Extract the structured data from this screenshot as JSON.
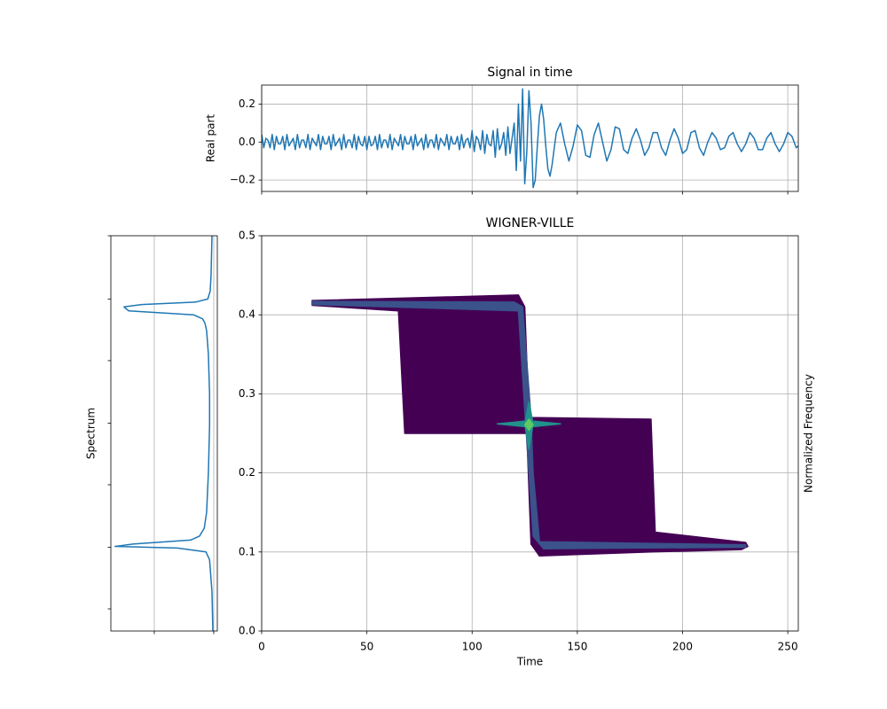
{
  "chart_data": [
    {
      "type": "line",
      "title": "Signal in time",
      "ylabel": "Real part",
      "color": "#1f77b4",
      "grid": true,
      "xlim": [
        0,
        255
      ],
      "xticks": [
        0,
        50,
        100,
        150,
        200,
        250
      ],
      "show_xticklabels": false,
      "ylim": [
        -0.26,
        0.3
      ],
      "yticks": [
        {
          "value": -0.2,
          "label": "−0.2"
        },
        {
          "value": 0,
          "label": "0.0"
        },
        0.2
      ],
      "x": [
        0,
        1,
        2,
        3,
        4,
        5,
        6,
        7,
        8,
        9,
        10,
        11,
        12,
        13,
        14,
        15,
        16,
        17,
        18,
        19,
        20,
        21,
        22,
        23,
        24,
        25,
        26,
        27,
        28,
        29,
        30,
        31,
        32,
        33,
        34,
        35,
        36,
        37,
        38,
        39,
        40,
        41,
        42,
        43,
        44,
        45,
        46,
        47,
        48,
        49,
        50,
        51,
        52,
        53,
        54,
        55,
        56,
        57,
        58,
        59,
        60,
        61,
        62,
        63,
        64,
        65,
        66,
        67,
        68,
        69,
        70,
        71,
        72,
        73,
        74,
        75,
        76,
        77,
        78,
        79,
        80,
        81,
        82,
        83,
        84,
        85,
        86,
        87,
        88,
        89,
        90,
        91,
        92,
        93,
        94,
        95,
        96,
        97,
        98,
        99,
        100,
        101,
        102,
        103,
        104,
        105,
        106,
        107,
        108,
        109,
        110,
        111,
        112,
        113,
        114,
        115,
        116,
        117,
        118,
        119,
        120,
        121,
        122,
        123,
        124,
        125,
        126,
        127,
        128,
        129,
        130,
        131,
        132,
        133,
        134,
        135,
        136,
        137,
        138,
        140,
        142,
        144,
        146,
        148,
        150,
        152,
        154,
        156,
        158,
        160,
        162,
        164,
        166,
        168,
        170,
        172,
        174,
        176,
        178,
        180,
        182,
        184,
        186,
        188,
        190,
        192,
        194,
        196,
        198,
        200,
        202,
        204,
        206,
        208,
        210,
        212,
        214,
        216,
        218,
        220,
        222,
        224,
        226,
        228,
        230,
        232,
        234,
        236,
        238,
        240,
        242,
        244,
        246,
        248,
        250,
        252,
        254,
        255
      ],
      "values": [
        0.04,
        -0.03,
        0.02,
        0.01,
        -0.03,
        0.04,
        -0.04,
        0.03,
        -0.01,
        -0.01,
        0.03,
        -0.04,
        0.04,
        -0.02,
        0,
        0.02,
        -0.04,
        0.04,
        -0.03,
        0.01,
        0.01,
        -0.03,
        0.04,
        -0.04,
        0.02,
        0,
        -0.02,
        0.04,
        -0.04,
        0.03,
        -0.01,
        -0.01,
        0.03,
        -0.04,
        0.04,
        -0.02,
        0,
        0.02,
        -0.04,
        0.04,
        -0.03,
        0.01,
        0.01,
        -0.03,
        0.04,
        -0.04,
        0.03,
        -0.01,
        -0.02,
        0.03,
        -0.04,
        0.03,
        -0.02,
        -0.01,
        0.03,
        -0.04,
        0.04,
        -0.03,
        0.01,
        0.01,
        -0.03,
        0.04,
        -0.04,
        0.02,
        0,
        -0.02,
        0.04,
        -0.04,
        0.03,
        -0.01,
        -0.01,
        0.03,
        -0.04,
        0.04,
        -0.02,
        0,
        0.02,
        -0.04,
        0.04,
        -0.03,
        0.01,
        0.01,
        -0.03,
        0.04,
        -0.04,
        0.02,
        0,
        -0.02,
        0.04,
        -0.04,
        0.03,
        -0.01,
        -0.01,
        0.03,
        -0.04,
        0.04,
        -0.03,
        0.01,
        0.02,
        -0.03,
        0.06,
        -0.05,
        0.03,
        0.01,
        -0.04,
        0.06,
        -0.06,
        0.04,
        -0.01,
        -0.02,
        0.06,
        -0.08,
        0.07,
        -0.04,
        -0.01,
        0.05,
        -0.07,
        0.08,
        -0.06,
        0.02,
        0.1,
        -0.15,
        0.2,
        -0.1,
        0.28,
        -0.22,
        -0.05,
        0.27,
        0.1,
        -0.24,
        -0.2,
        -0.02,
        0.14,
        0.2,
        0.12,
        -0.02,
        -0.14,
        -0.18,
        -0.12,
        0.05,
        0.1,
        -0.01,
        -0.1,
        -0.02,
        0.09,
        0.06,
        -0.07,
        -0.08,
        0.04,
        0.1,
        0,
        -0.1,
        -0.04,
        0.08,
        0.07,
        -0.04,
        -0.06,
        0.02,
        0.07,
        0.01,
        -0.07,
        -0.03,
        0.05,
        0.05,
        -0.03,
        -0.07,
        0.01,
        0.07,
        0.02,
        -0.06,
        -0.04,
        0.05,
        0.06,
        -0.03,
        -0.07,
        0,
        0.05,
        0.02,
        -0.04,
        -0.03,
        0.03,
        0.05,
        -0.01,
        -0.05,
        -0.01,
        0.05,
        0.02,
        -0.04,
        -0.04,
        0.02,
        0.05,
        -0.01,
        -0.05,
        -0.01,
        0.05,
        0.03,
        -0.03,
        -0.02
      ]
    },
    {
      "type": "line",
      "orientation": "horizontal",
      "ylabel": "Spectrum",
      "color": "#1f77b4",
      "grid": "x",
      "xlim": [
        1.73,
        -0.06
      ],
      "xticks": [
        1,
        0
      ],
      "show_xticklabels": false,
      "ylim": [
        0,
        0.5
      ],
      "yticks": [
        0.028,
        0.106,
        0.185,
        0.263,
        0.342,
        0.42,
        0.5
      ],
      "show_yticklabels": false,
      "y": [
        0,
        0.05,
        0.09,
        0.1,
        0.105,
        0.107,
        0.11,
        0.115,
        0.12,
        0.13,
        0.15,
        0.2,
        0.26,
        0.3,
        0.35,
        0.38,
        0.39,
        0.395,
        0.4,
        0.405,
        0.41,
        0.413,
        0.416,
        0.42,
        0.43,
        0.45,
        0.5
      ],
      "values": [
        0.015,
        0.03,
        0.07,
        0.13,
        0.61,
        1.66,
        1.36,
        0.39,
        0.24,
        0.16,
        0.12,
        0.09,
        0.07,
        0.07,
        0.09,
        0.12,
        0.15,
        0.19,
        0.34,
        1.43,
        1.51,
        1.21,
        0.31,
        0.1,
        0.06,
        0.045,
        0.03
      ]
    },
    {
      "type": "contour",
      "title": "WIGNER-VILLE",
      "xlabel": "Time",
      "ylabel": "Normalized Frequency",
      "ylabel_position": "right",
      "grid": true,
      "xlim": [
        0,
        255
      ],
      "xticks": [
        0,
        50,
        100,
        150,
        200,
        250
      ],
      "ylim": [
        0,
        0.5
      ],
      "yticks": [
        {
          "value": 0,
          "label": "0.0"
        },
        0.1,
        0.2,
        0.3,
        0.4,
        0.5
      ],
      "levels": [
        {
          "color": "#440154",
          "x": [
            24,
            122,
            125,
            127,
            185,
            187,
            230,
            231,
            228,
            185,
            132,
            128,
            126,
            68,
            65,
            24
          ],
          "y": [
            0.418,
            0.425,
            0.41,
            0.27,
            0.268,
            0.125,
            0.112,
            0.107,
            0.103,
            0.1,
            0.095,
            0.11,
            0.25,
            0.25,
            0.405,
            0.412
          ]
        },
        {
          "color": "#3b528b",
          "x": [
            24,
            120,
            124,
            128,
            129,
            132,
            230,
            230,
            134,
            129,
            125,
            122,
            24
          ],
          "y": [
            0.417,
            0.416,
            0.41,
            0.27,
            0.2,
            0.113,
            0.109,
            0.106,
            0.104,
            0.12,
            0.28,
            0.405,
            0.413
          ]
        },
        {
          "color": "#21918c",
          "x": [
            112,
            127,
            142,
            127
          ],
          "y": [
            0.262,
            0.266,
            0.262,
            0.258
          ]
        },
        {
          "color": "#21918c",
          "x": [
            125,
            127,
            129,
            127
          ],
          "y": [
            0.262,
            0.29,
            0.262,
            0.23
          ]
        },
        {
          "color": "#5ec962",
          "x": [
            125,
            127,
            129,
            127
          ],
          "y": [
            0.261,
            0.268,
            0.261,
            0.254
          ]
        }
      ]
    }
  ]
}
